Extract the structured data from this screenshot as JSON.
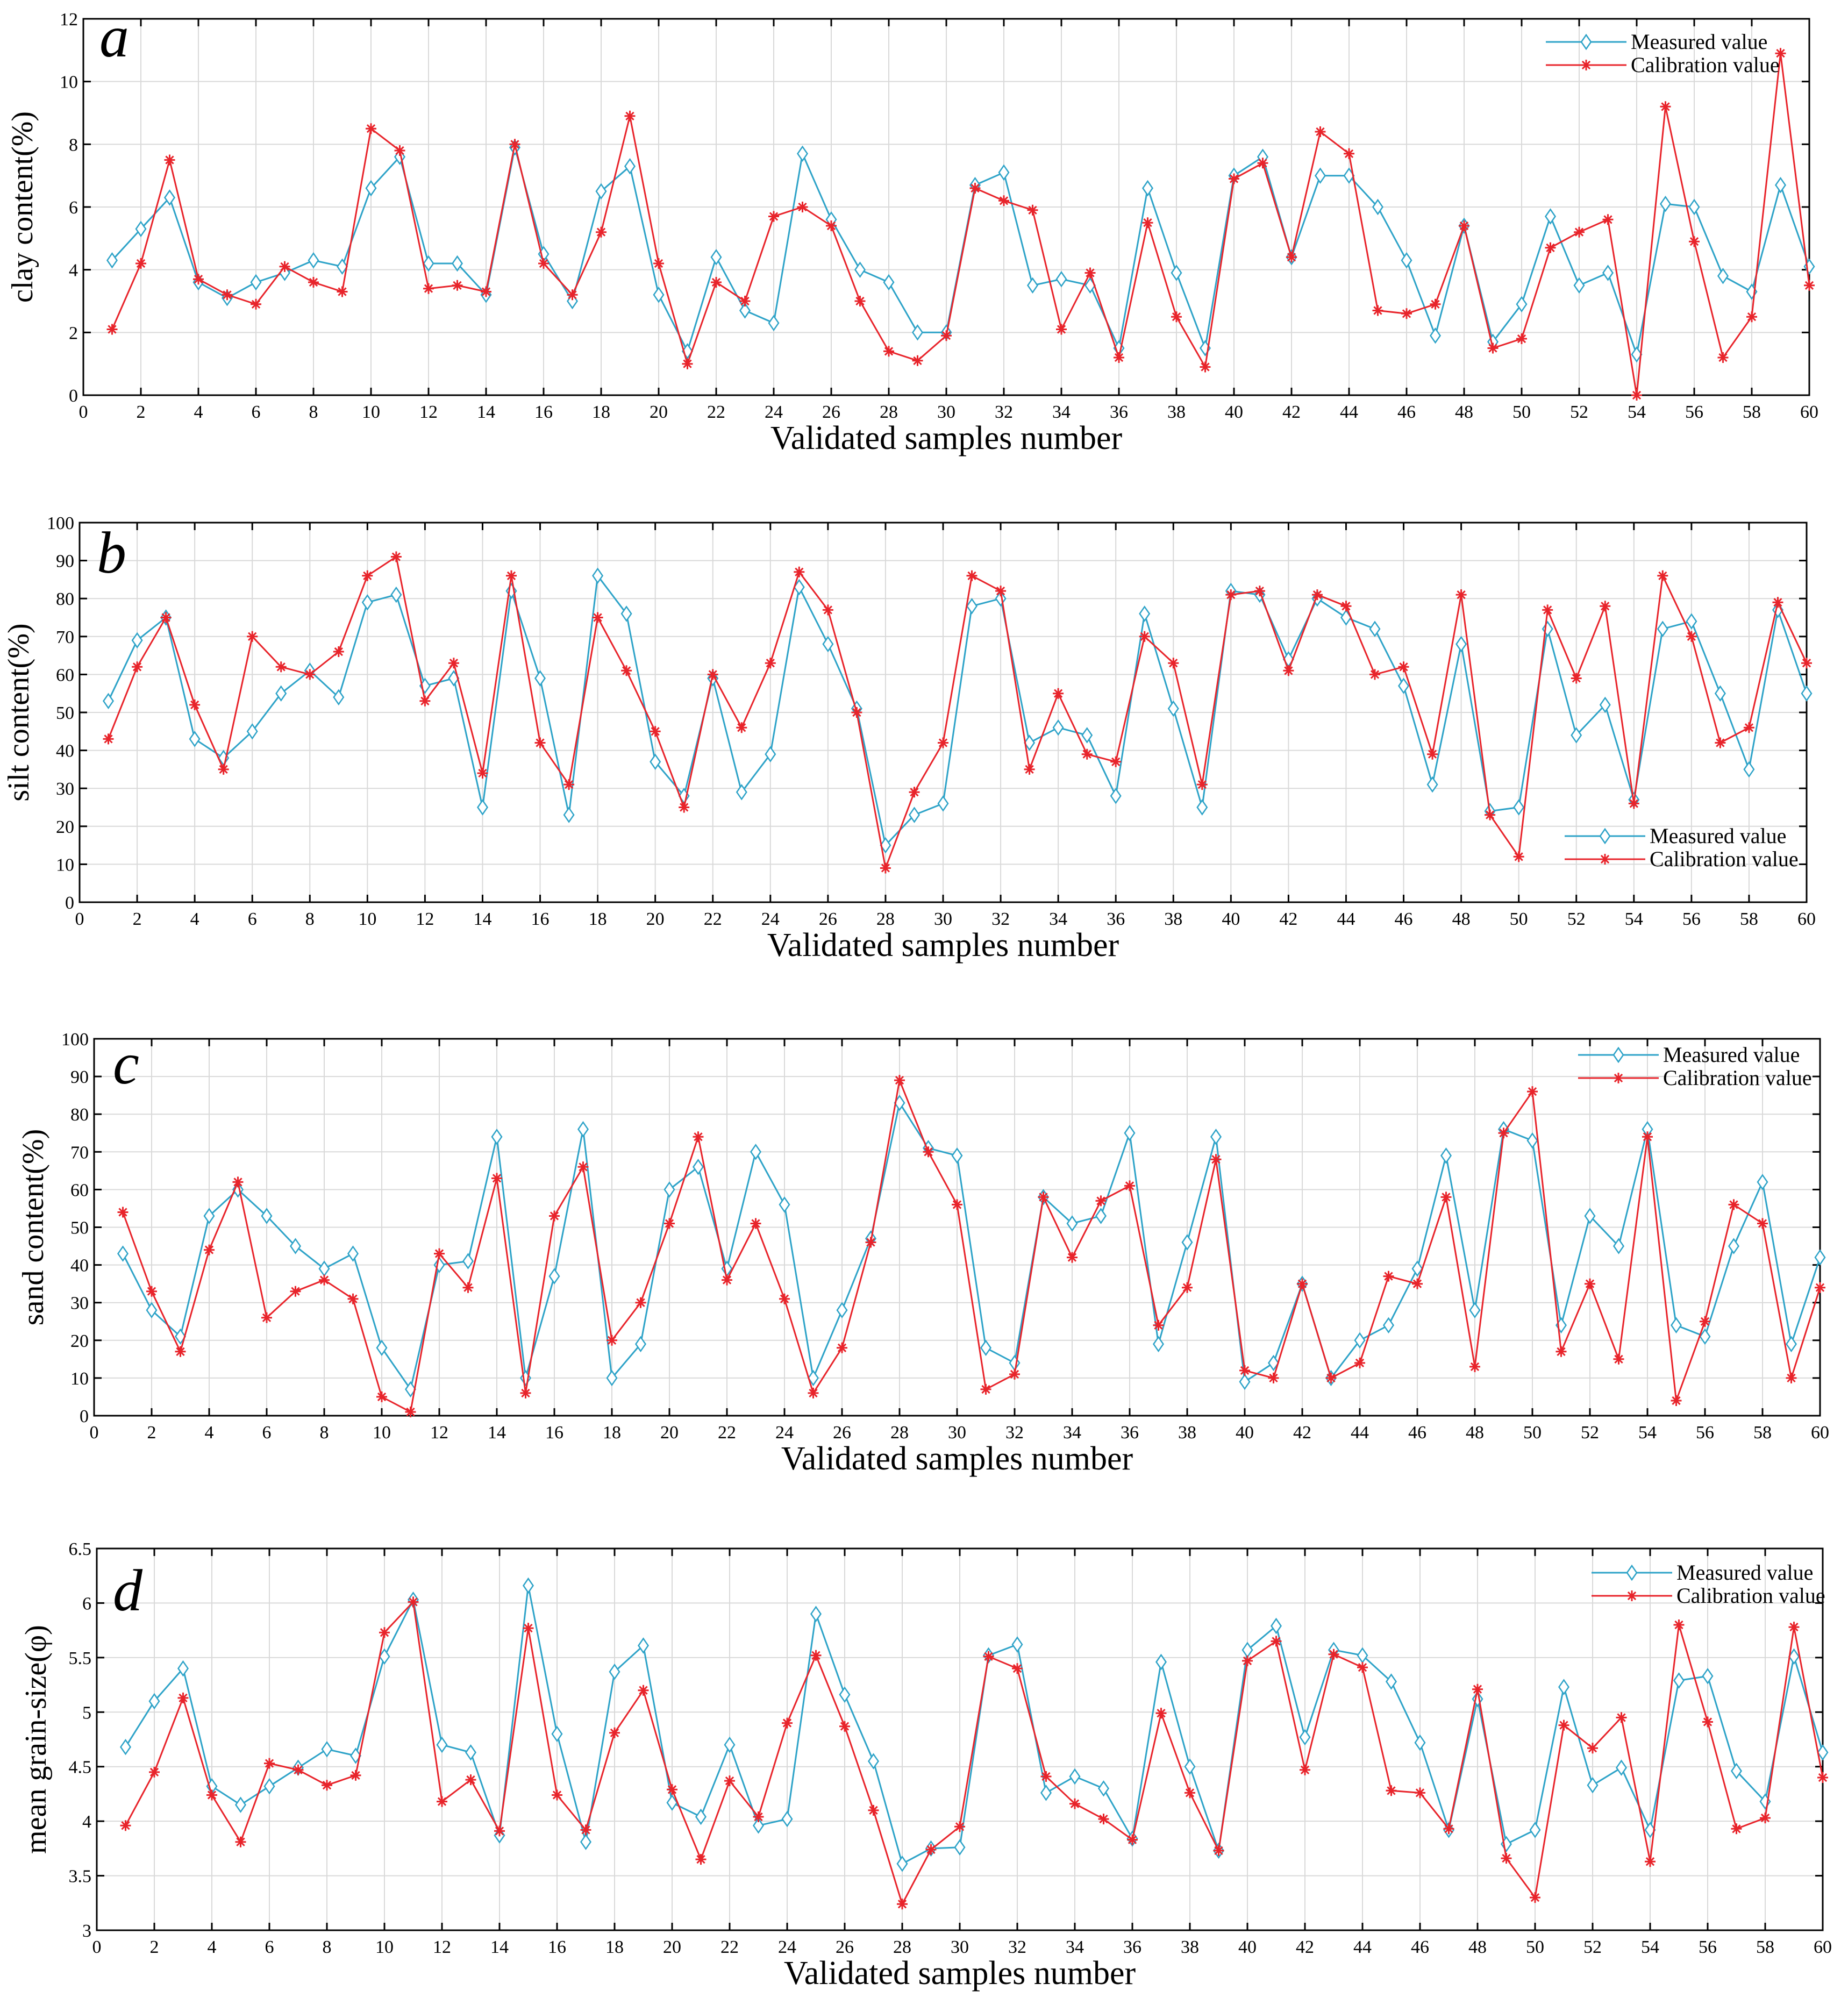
{
  "chart_data": [
    {
      "type": "line",
      "panel_label": "a",
      "title": "",
      "xlabel": "Validated samples number",
      "ylabel": "clay content(%)",
      "xlim": [
        0,
        60
      ],
      "ylim": [
        0,
        12
      ],
      "xticks": [
        "0",
        "2",
        "4",
        "6",
        "8",
        "10",
        "12",
        "14",
        "16",
        "18",
        "20",
        "22",
        "24",
        "26",
        "28",
        "30",
        "32",
        "34",
        "36",
        "38",
        "40",
        "42",
        "44",
        "46",
        "48",
        "50",
        "52",
        "54",
        "56",
        "58",
        "60"
      ],
      "yticks": [
        "0",
        "2",
        "4",
        "6",
        "8",
        "10",
        "12"
      ],
      "grid": true,
      "legend_position": "top-right",
      "x": [
        1,
        2,
        3,
        4,
        5,
        6,
        7,
        8,
        9,
        10,
        11,
        12,
        13,
        14,
        15,
        16,
        17,
        18,
        19,
        20,
        21,
        22,
        23,
        24,
        25,
        26,
        27,
        28,
        29,
        30,
        31,
        32,
        33,
        34,
        35,
        36,
        37,
        38,
        39,
        40,
        41,
        42,
        43,
        44,
        45,
        46,
        47,
        48,
        49,
        50,
        51,
        52,
        53,
        54,
        55,
        56,
        57,
        58,
        59,
        60
      ],
      "series": [
        {
          "name": "Measured value",
          "color": "#2ea3c8",
          "marker": "diamond",
          "values": [
            4.3,
            5.3,
            6.3,
            3.6,
            3.1,
            3.6,
            3.9,
            4.3,
            4.1,
            6.6,
            7.6,
            4.2,
            4.2,
            3.2,
            7.9,
            4.5,
            3.0,
            6.5,
            7.3,
            3.2,
            1.4,
            4.4,
            2.7,
            2.3,
            7.7,
            5.6,
            4.0,
            3.6,
            2.0,
            2.0,
            6.7,
            7.1,
            3.5,
            3.7,
            3.5,
            1.5,
            6.6,
            3.9,
            1.5,
            7.0,
            7.6,
            4.4,
            7.0,
            7.0,
            6.0,
            4.3,
            1.9,
            5.4,
            1.7,
            2.9,
            5.7,
            3.5,
            3.9,
            1.3,
            6.1,
            6.0,
            3.8,
            3.3,
            6.7,
            4.1
          ]
        },
        {
          "name": "Calibration value",
          "color": "#e8242b",
          "marker": "star",
          "values": [
            2.1,
            4.2,
            7.5,
            3.7,
            3.2,
            2.9,
            4.1,
            3.6,
            3.3,
            8.5,
            7.8,
            3.4,
            3.5,
            3.3,
            8.0,
            4.2,
            3.2,
            5.2,
            8.9,
            4.2,
            1.0,
            3.6,
            3.0,
            5.7,
            6.0,
            5.4,
            3.0,
            1.4,
            1.1,
            1.9,
            6.6,
            6.2,
            5.9,
            2.1,
            3.9,
            1.2,
            5.5,
            2.5,
            0.9,
            6.9,
            7.4,
            4.4,
            8.4,
            7.7,
            2.7,
            2.6,
            2.9,
            5.4,
            1.5,
            1.8,
            4.7,
            5.2,
            5.6,
            0.0,
            9.2,
            4.9,
            1.2,
            2.5,
            10.9,
            3.5
          ]
        }
      ]
    },
    {
      "type": "line",
      "panel_label": "b",
      "title": "",
      "xlabel": "Validated samples number",
      "ylabel": "silt content(%)",
      "xlim": [
        0,
        60
      ],
      "ylim": [
        0,
        100
      ],
      "xticks": [
        "0",
        "2",
        "4",
        "6",
        "8",
        "10",
        "12",
        "14",
        "16",
        "18",
        "20",
        "22",
        "24",
        "26",
        "28",
        "30",
        "32",
        "34",
        "36",
        "38",
        "40",
        "42",
        "44",
        "46",
        "48",
        "50",
        "52",
        "54",
        "56",
        "58",
        "60"
      ],
      "yticks": [
        "0",
        "10",
        "20",
        "30",
        "40",
        "50",
        "60",
        "70",
        "80",
        "90",
        "100"
      ],
      "grid": true,
      "legend_position": "bottom-right",
      "x": [
        1,
        2,
        3,
        4,
        5,
        6,
        7,
        8,
        9,
        10,
        11,
        12,
        13,
        14,
        15,
        16,
        17,
        18,
        19,
        20,
        21,
        22,
        23,
        24,
        25,
        26,
        27,
        28,
        29,
        30,
        31,
        32,
        33,
        34,
        35,
        36,
        37,
        38,
        39,
        40,
        41,
        42,
        43,
        44,
        45,
        46,
        47,
        48,
        49,
        50,
        51,
        52,
        53,
        54,
        55,
        56,
        57,
        58,
        59,
        60
      ],
      "series": [
        {
          "name": "Measured value",
          "color": "#2ea3c8",
          "marker": "diamond",
          "values": [
            53,
            69,
            75,
            43,
            38,
            45,
            55,
            61,
            54,
            79,
            81,
            57,
            59,
            25,
            82,
            59,
            23,
            86,
            76,
            37,
            28,
            59,
            29,
            39,
            83,
            68,
            51,
            15,
            23,
            26,
            78,
            80,
            42,
            46,
            44,
            28,
            76,
            51,
            25,
            82,
            81,
            64,
            80,
            75,
            72,
            57,
            31,
            68,
            24,
            25,
            72,
            44,
            52,
            27,
            72,
            74,
            55,
            35,
            77,
            55
          ]
        },
        {
          "name": "Calibration value",
          "color": "#e8242b",
          "marker": "star",
          "values": [
            43,
            62,
            75,
            52,
            35,
            70,
            62,
            60,
            66,
            86,
            91,
            53,
            63,
            34,
            86,
            42,
            31,
            75,
            61,
            45,
            25,
            60,
            46,
            63,
            87,
            77,
            50,
            9,
            29,
            42,
            86,
            82,
            35,
            55,
            39,
            37,
            70,
            63,
            31,
            81,
            82,
            61,
            81,
            78,
            60,
            62,
            39,
            81,
            23,
            12,
            77,
            59,
            78,
            26,
            86,
            70,
            42,
            46,
            79,
            63
          ]
        }
      ]
    },
    {
      "type": "line",
      "panel_label": "c",
      "title": "",
      "xlabel": "Validated samples number",
      "ylabel": "sand content(%)",
      "xlim": [
        0,
        60
      ],
      "ylim": [
        0,
        100
      ],
      "xticks": [
        "0",
        "2",
        "4",
        "6",
        "8",
        "10",
        "12",
        "14",
        "16",
        "18",
        "20",
        "22",
        "24",
        "26",
        "28",
        "30",
        "32",
        "34",
        "36",
        "38",
        "40",
        "42",
        "44",
        "46",
        "48",
        "50",
        "52",
        "54",
        "56",
        "58",
        "60"
      ],
      "yticks": [
        "0",
        "10",
        "20",
        "30",
        "40",
        "50",
        "60",
        "70",
        "80",
        "90",
        "100"
      ],
      "grid": true,
      "legend_position": "top-right",
      "x": [
        1,
        2,
        3,
        4,
        5,
        6,
        7,
        8,
        9,
        10,
        11,
        12,
        13,
        14,
        15,
        16,
        17,
        18,
        19,
        20,
        21,
        22,
        23,
        24,
        25,
        26,
        27,
        28,
        29,
        30,
        31,
        32,
        33,
        34,
        35,
        36,
        37,
        38,
        39,
        40,
        41,
        42,
        43,
        44,
        45,
        46,
        47,
        48,
        49,
        50,
        51,
        52,
        53,
        54,
        55,
        56,
        57,
        58,
        59,
        60
      ],
      "series": [
        {
          "name": "Measured value",
          "color": "#2ea3c8",
          "marker": "diamond",
          "values": [
            43,
            28,
            21,
            53,
            60,
            53,
            45,
            39,
            43,
            18,
            7,
            40,
            41,
            74,
            10,
            37,
            76,
            10,
            19,
            60,
            66,
            39,
            70,
            56,
            10,
            28,
            47,
            83,
            71,
            69,
            18,
            14,
            58,
            51,
            53,
            75,
            19,
            46,
            74,
            9,
            14,
            35,
            10,
            20,
            24,
            39,
            69,
            28,
            76,
            73,
            24,
            53,
            45,
            76,
            24,
            21,
            45,
            62,
            19,
            42
          ]
        },
        {
          "name": "Calibration value",
          "color": "#e8242b",
          "marker": "star",
          "values": [
            54,
            33,
            17,
            44,
            62,
            26,
            33,
            36,
            31,
            5,
            1,
            43,
            34,
            63,
            6,
            53,
            66,
            20,
            30,
            51,
            74,
            36,
            51,
            31,
            6,
            18,
            46,
            89,
            70,
            56,
            7,
            11,
            58,
            42,
            57,
            61,
            24,
            34,
            68,
            12,
            10,
            35,
            10,
            14,
            37,
            35,
            58,
            13,
            75,
            86,
            17,
            35,
            15,
            74,
            4,
            25,
            56,
            51,
            10,
            34
          ]
        }
      ]
    },
    {
      "type": "line",
      "panel_label": "d",
      "title": "",
      "xlabel": "Validated samples number",
      "ylabel": "mean grain-size(φ)",
      "xlim": [
        0,
        60
      ],
      "ylim": [
        3,
        6.5
      ],
      "xticks": [
        "0",
        "2",
        "4",
        "6",
        "8",
        "10",
        "12",
        "14",
        "16",
        "18",
        "20",
        "22",
        "24",
        "26",
        "28",
        "30",
        "32",
        "34",
        "36",
        "38",
        "40",
        "42",
        "44",
        "46",
        "48",
        "50",
        "52",
        "54",
        "56",
        "58",
        "60"
      ],
      "yticks": [
        "3",
        "3.5",
        "4",
        "4.5",
        "5",
        "5.5",
        "6",
        "6.5"
      ],
      "grid": true,
      "legend_position": "top-right",
      "x": [
        1,
        2,
        3,
        4,
        5,
        6,
        7,
        8,
        9,
        10,
        11,
        12,
        13,
        14,
        15,
        16,
        17,
        18,
        19,
        20,
        21,
        22,
        23,
        24,
        25,
        26,
        27,
        28,
        29,
        30,
        31,
        32,
        33,
        34,
        35,
        36,
        37,
        38,
        39,
        40,
        41,
        42,
        43,
        44,
        45,
        46,
        47,
        48,
        49,
        50,
        51,
        52,
        53,
        54,
        55,
        56,
        57,
        58,
        59,
        60
      ],
      "series": [
        {
          "name": "Measured value",
          "color": "#2ea3c8",
          "marker": "diamond",
          "values": [
            4.68,
            5.1,
            5.4,
            4.32,
            4.15,
            4.32,
            4.49,
            4.66,
            4.6,
            5.51,
            6.03,
            4.7,
            4.63,
            3.87,
            6.16,
            4.8,
            3.81,
            5.37,
            5.61,
            4.17,
            4.04,
            4.7,
            3.96,
            4.02,
            5.9,
            5.16,
            4.55,
            3.61,
            3.75,
            3.76,
            5.52,
            5.62,
            4.26,
            4.41,
            4.3,
            3.84,
            5.46,
            4.5,
            3.73,
            5.57,
            5.79,
            4.77,
            5.57,
            5.52,
            5.28,
            4.72,
            3.92,
            5.12,
            3.79,
            3.92,
            5.23,
            4.33,
            4.49,
            3.92,
            5.29,
            5.33,
            4.46,
            4.18,
            5.51,
            4.63
          ]
        },
        {
          "name": "Calibration value",
          "color": "#e8242b",
          "marker": "star",
          "values": [
            3.96,
            4.45,
            5.13,
            4.24,
            3.81,
            4.53,
            4.47,
            4.33,
            4.42,
            5.73,
            6.01,
            4.18,
            4.38,
            3.91,
            5.77,
            4.24,
            3.92,
            4.81,
            5.2,
            4.29,
            3.65,
            4.37,
            4.04,
            4.9,
            5.52,
            4.87,
            4.1,
            3.24,
            3.74,
            3.95,
            5.51,
            5.4,
            4.41,
            4.16,
            4.02,
            3.83,
            4.99,
            4.26,
            3.73,
            5.47,
            5.65,
            4.47,
            5.53,
            5.41,
            4.28,
            4.26,
            3.93,
            5.21,
            3.66,
            3.3,
            4.88,
            4.67,
            4.95,
            3.63,
            5.8,
            4.91,
            3.93,
            4.03,
            5.78,
            4.4
          ]
        }
      ]
    }
  ]
}
